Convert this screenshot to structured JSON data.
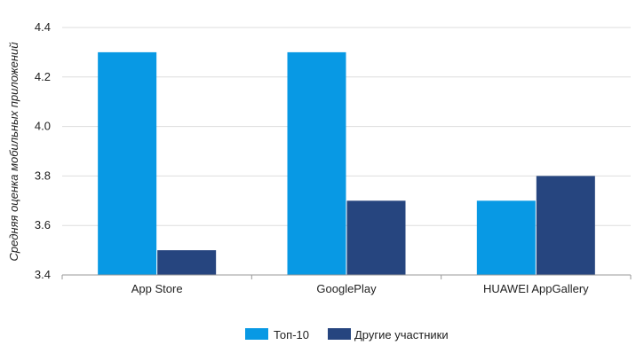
{
  "chart_data": {
    "type": "bar",
    "categories": [
      "App Store",
      "GooglePlay",
      "HUAWEI AppGallery"
    ],
    "series": [
      {
        "name": "Топ-10",
        "values": [
          4.3,
          4.3,
          3.7
        ],
        "color": "#0899e4"
      },
      {
        "name": "Другие участники",
        "values": [
          3.5,
          3.7,
          3.8
        ],
        "color": "#26457f"
      }
    ],
    "ylabel": "Средняя оценка мобильных приложений",
    "xlabel": "",
    "ylim": [
      3.4,
      4.4
    ],
    "yticks": [
      "3.4",
      "3.6",
      "3.8",
      "4.0",
      "4.2",
      "4.4"
    ],
    "grid": true,
    "legend_position": "bottom-center"
  },
  "colors": {
    "grid": "#dddddd",
    "axis": "#999999",
    "text": "#222222"
  }
}
